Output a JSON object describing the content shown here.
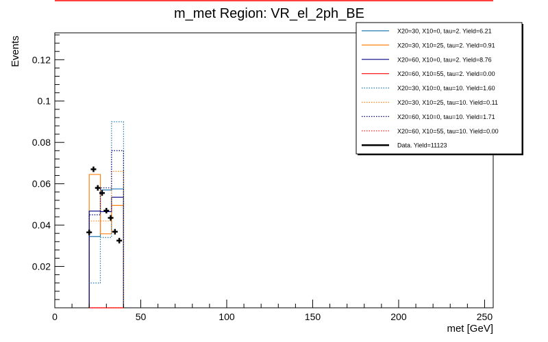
{
  "chart_data": {
    "type": "histogram",
    "title": "m_met Region: VR_el_2ph_BE",
    "xlabel": "met [GeV]",
    "ylabel": "Events",
    "xlim": [
      0,
      255
    ],
    "ylim": [
      0,
      0.133
    ],
    "x_ticks": [
      0,
      50,
      100,
      150,
      200,
      250
    ],
    "y_ticks": [
      0.02,
      0.04,
      0.06,
      0.08,
      0.1,
      0.12
    ],
    "legend_position": "top-right",
    "bin_edges": [
      20,
      26.5,
      33,
      40
    ],
    "series": [
      {
        "name": "X20=30, X10=0, tau=2. Yield=6.21",
        "color": "#1f77b4",
        "style": "solid",
        "values": [
          0.0345,
          0.057,
          0.0575
        ]
      },
      {
        "name": "X20=30, X10=25, tau=2. Yield=0.91",
        "color": "#ff7f0e",
        "style": "solid",
        "values": [
          0.0645,
          0.0358,
          0.0495
        ]
      },
      {
        "name": "X20=60, X10=0, tau=2. Yield=8.76",
        "color": "#000080",
        "style": "solid",
        "values": [
          0.0468,
          0.0465,
          0.0535
        ]
      },
      {
        "name": "X20=60, X10=55, tau=2. Yield=0.00",
        "color": "#ff0000",
        "style": "solid",
        "values": [
          0,
          0,
          0
        ]
      },
      {
        "name": "X20=30, X10=0, tau=10. Yield=1.60",
        "color": "#1f77b4",
        "style": "dotted",
        "values": [
          0.012,
          0.034,
          0.09
        ]
      },
      {
        "name": "X20=30, X10=25, tau=10. Yield=0.11",
        "color": "#ff7f0e",
        "style": "dotted",
        "values": [
          0.042,
          0.042,
          0.066
        ]
      },
      {
        "name": "X20=60, X10=0, tau=10. Yield=1.71",
        "color": "#000080",
        "style": "dotted",
        "values": [
          0.045,
          0.058,
          0.076
        ]
      },
      {
        "name": "X20=60, X10=55, tau=10. Yield=0.00",
        "color": "#ff0000",
        "style": "dotted",
        "values": [
          0,
          0,
          0
        ]
      }
    ],
    "data": {
      "name": "Data. Yield=11123",
      "color": "#000000",
      "x": [
        20,
        22.5,
        25,
        27.5,
        30,
        32.5,
        35,
        37.5
      ],
      "y": [
        0.0365,
        0.067,
        0.058,
        0.0555,
        0.047,
        0.0435,
        0.0368,
        0.0325
      ]
    }
  }
}
